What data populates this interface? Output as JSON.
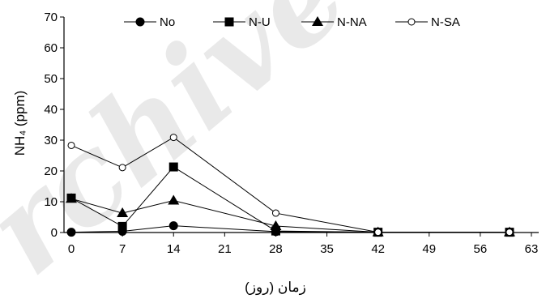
{
  "chart_data": {
    "type": "line",
    "title": "",
    "xlabel": "زمان (روز)",
    "ylabel": "NH₄ (ppm)",
    "xlim": [
      -1,
      64
    ],
    "ylim": [
      0,
      70
    ],
    "xticks": [
      0,
      7,
      14,
      21,
      28,
      35,
      42,
      49,
      56,
      63
    ],
    "yticks": [
      0,
      10,
      20,
      30,
      40,
      50,
      60,
      70
    ],
    "grid": false,
    "legend_position": "top",
    "series": [
      {
        "name": "No",
        "marker": "circle-filled",
        "x": [
          0,
          7,
          14,
          28,
          42,
          60
        ],
        "y": [
          0.1,
          0.4,
          2.2,
          0.3,
          0.1,
          0.1
        ]
      },
      {
        "name": "N-U",
        "marker": "square-filled",
        "x": [
          0,
          7,
          14,
          28,
          42,
          60
        ],
        "y": [
          11.2,
          2,
          21.3,
          0.5,
          0.1,
          0.1
        ]
      },
      {
        "name": "N-NA",
        "marker": "triangle-filled",
        "x": [
          0,
          7,
          14,
          28,
          42,
          60
        ],
        "y": [
          11,
          6.3,
          10.4,
          2.1,
          0.1,
          0.1
        ]
      },
      {
        "name": "N-SA",
        "marker": "circle-open",
        "x": [
          0,
          7,
          14,
          28,
          42,
          60
        ],
        "y": [
          28.3,
          21.1,
          30.9,
          6.3,
          0.1,
          0.1
        ]
      }
    ]
  },
  "watermark": "rchive"
}
